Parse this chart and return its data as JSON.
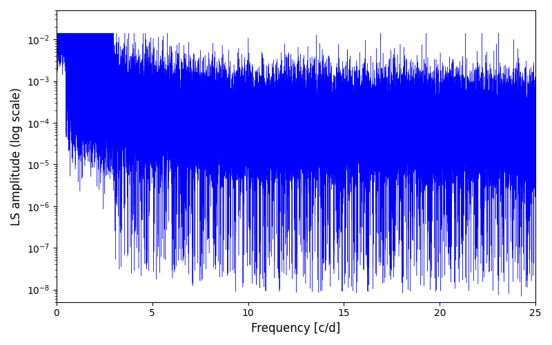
{
  "title": "",
  "xlabel": "Frequency [c/d]",
  "ylabel": "LS amplitude (log scale)",
  "line_color": "#0000ff",
  "line_width": 0.3,
  "xlim": [
    0,
    25
  ],
  "ylim": [
    5e-09,
    0.05
  ],
  "freq_min": 0.0,
  "freq_max": 25.0,
  "n_points": 50000,
  "seed": 42,
  "background_color": "#ffffff",
  "figsize": [
    8.0,
    5.0
  ],
  "dpi": 100,
  "yticks": [
    1e-08,
    1e-07,
    1e-06,
    1e-05,
    0.0001,
    0.001,
    0.01
  ]
}
